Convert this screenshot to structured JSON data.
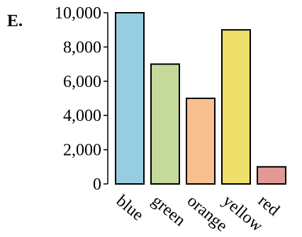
{
  "panel_label": "E.",
  "chart_data": {
    "type": "bar",
    "categories": [
      "blue",
      "green",
      "orange",
      "yellow",
      "red"
    ],
    "values": [
      10000,
      7000,
      5000,
      9000,
      1000
    ],
    "colors": [
      "#97cde0",
      "#c4d99a",
      "#f9c08f",
      "#efdf6b",
      "#e09a95"
    ],
    "ylim": [
      0,
      10000
    ],
    "yticks": [
      0,
      2000,
      4000,
      6000,
      8000,
      10000
    ],
    "ytick_labels": [
      "0",
      "2,000",
      "4,000",
      "6,000",
      "8,000",
      "10,000"
    ],
    "title": "",
    "xlabel": "",
    "ylabel": "",
    "grid": false,
    "legend": false
  }
}
